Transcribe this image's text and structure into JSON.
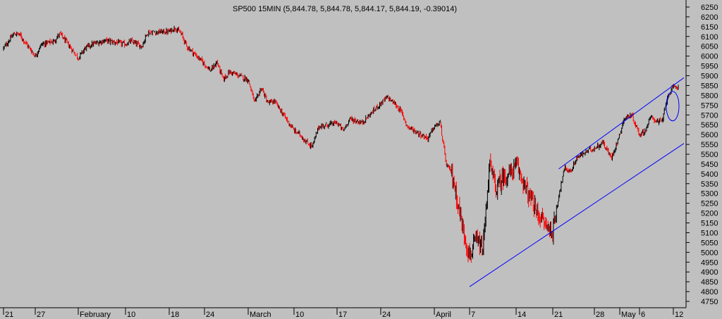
{
  "chart_data": {
    "type": "candlestick",
    "title": "SP500 15MIN (5,844.78, 5,844.78, 5,844.17, 5,844.19, -0.39014)",
    "xlabel": "",
    "ylabel": "",
    "ylim": [
      4700,
      6275
    ],
    "y_ticks": [
      6250,
      6200,
      6150,
      6100,
      6050,
      6000,
      5950,
      5900,
      5850,
      5800,
      5750,
      5700,
      5650,
      5600,
      5550,
      5500,
      5450,
      5400,
      5350,
      5300,
      5250,
      5200,
      5150,
      5100,
      5050,
      5000,
      4950,
      4900,
      4850,
      4800,
      4750
    ],
    "x_ticks": [
      {
        "label": "21",
        "date": "2025-01-21"
      },
      {
        "label": "27",
        "date": "2025-01-27"
      },
      {
        "label": "February",
        "date": "2025-02-03"
      },
      {
        "label": "10",
        "date": "2025-02-10"
      },
      {
        "label": "18",
        "date": "2025-02-18"
      },
      {
        "label": "24",
        "date": "2025-02-24"
      },
      {
        "label": "March",
        "date": "2025-03-03"
      },
      {
        "label": "10",
        "date": "2025-03-10"
      },
      {
        "label": "17",
        "date": "2025-03-17"
      },
      {
        "label": "24",
        "date": "2025-03-24"
      },
      {
        "label": "April",
        "date": "2025-04-01"
      },
      {
        "label": "7",
        "date": "2025-04-07"
      },
      {
        "label": "14",
        "date": "2025-04-14"
      },
      {
        "label": "21",
        "date": "2025-04-21"
      },
      {
        "label": "28",
        "date": "2025-04-28"
      },
      {
        "label": "May",
        "date": "2025-05-01"
      },
      {
        "label": "6",
        "date": "2025-05-06"
      },
      {
        "label": "12",
        "date": "2025-05-12"
      }
    ],
    "price_path": [
      [
        "2025-01-21",
        6040
      ],
      [
        "2025-01-23",
        6115
      ],
      [
        "2025-01-24",
        6110
      ],
      [
        "2025-01-27",
        6000
      ],
      [
        "2025-01-28",
        6060
      ],
      [
        "2025-01-30",
        6075
      ],
      [
        "2025-01-31",
        6115
      ],
      [
        "2025-02-03",
        5990
      ],
      [
        "2025-02-04",
        6040
      ],
      [
        "2025-02-05",
        6060
      ],
      [
        "2025-02-07",
        6080
      ],
      [
        "2025-02-10",
        6060
      ],
      [
        "2025-02-11",
        6075
      ],
      [
        "2025-02-13",
        6050
      ],
      [
        "2025-02-14",
        6120
      ],
      [
        "2025-02-18",
        6125
      ],
      [
        "2025-02-19",
        6145
      ],
      [
        "2025-02-20",
        6115
      ],
      [
        "2025-02-21",
        6050
      ],
      [
        "2025-02-24",
        5960
      ],
      [
        "2025-02-25",
        5925
      ],
      [
        "2025-02-26",
        5970
      ],
      [
        "2025-02-27",
        5880
      ],
      [
        "2025-02-28",
        5920
      ],
      [
        "2025-03-03",
        5880
      ],
      [
        "2025-03-04",
        5760
      ],
      [
        "2025-03-05",
        5840
      ],
      [
        "2025-03-06",
        5760
      ],
      [
        "2025-03-07",
        5770
      ],
      [
        "2025-03-10",
        5620
      ],
      [
        "2025-03-11",
        5600
      ],
      [
        "2025-03-12",
        5560
      ],
      [
        "2025-03-13",
        5540
      ],
      [
        "2025-03-14",
        5640
      ],
      [
        "2025-03-17",
        5660
      ],
      [
        "2025-03-18",
        5620
      ],
      [
        "2025-03-19",
        5680
      ],
      [
        "2025-03-20",
        5670
      ],
      [
        "2025-03-21",
        5660
      ],
      [
        "2025-03-24",
        5760
      ],
      [
        "2025-03-25",
        5790
      ],
      [
        "2025-03-26",
        5760
      ],
      [
        "2025-03-27",
        5720
      ],
      [
        "2025-03-28",
        5640
      ],
      [
        "2025-03-31",
        5580
      ],
      [
        "2025-04-01",
        5640
      ],
      [
        "2025-04-02",
        5660
      ],
      [
        "2025-04-03",
        5450
      ],
      [
        "2025-04-04",
        5400
      ],
      [
        "2025-04-05",
        5250
      ],
      [
        "2025-04-06",
        5100
      ],
      [
        "2025-04-07",
        4980
      ],
      [
        "2025-04-08",
        5060
      ],
      [
        "2025-04-09",
        5010
      ],
      [
        "2025-04-10",
        5450
      ],
      [
        "2025-04-11",
        5320
      ],
      [
        "2025-04-12",
        5380
      ],
      [
        "2025-04-13",
        5400
      ],
      [
        "2025-04-14",
        5440
      ],
      [
        "2025-04-15",
        5390
      ],
      [
        "2025-04-16",
        5310
      ],
      [
        "2025-04-17",
        5260
      ],
      [
        "2025-04-18",
        5200
      ],
      [
        "2025-04-20",
        5130
      ],
      [
        "2025-04-21",
        5100
      ],
      [
        "2025-04-22",
        5290
      ],
      [
        "2025-04-23",
        5430
      ],
      [
        "2025-04-24",
        5410
      ],
      [
        "2025-04-25",
        5480
      ],
      [
        "2025-04-27",
        5520
      ],
      [
        "2025-04-28",
        5530
      ],
      [
        "2025-04-29",
        5560
      ],
      [
        "2025-04-30",
        5480
      ],
      [
        "2025-05-01",
        5600
      ],
      [
        "2025-05-02",
        5680
      ],
      [
        "2025-05-04",
        5700
      ],
      [
        "2025-05-05",
        5650
      ],
      [
        "2025-05-06",
        5600
      ],
      [
        "2025-05-07",
        5620
      ],
      [
        "2025-05-08",
        5690
      ],
      [
        "2025-05-09",
        5670
      ],
      [
        "2025-05-10",
        5665
      ],
      [
        "2025-05-11",
        5800
      ],
      [
        "2025-05-12",
        5840
      ],
      [
        "2025-05-13",
        5845
      ]
    ],
    "trendlines": [
      {
        "from": {
          "date": "2025-04-07",
          "price": 4825
        },
        "to": {
          "date": "2025-05-14",
          "price": 5555
        }
      },
      {
        "from": {
          "date": "2025-04-22",
          "price": 5425
        },
        "to": {
          "date": "2025-05-14",
          "price": 5890
        }
      }
    ],
    "annotation_ellipse": {
      "date": "2025-05-11",
      "price_low": 5670,
      "price_high": 5820
    },
    "colors": {
      "background": "#c0c0c0",
      "up": "#000000",
      "down": "#ff0000",
      "trendline": "#0000ff"
    },
    "grid": false
  }
}
